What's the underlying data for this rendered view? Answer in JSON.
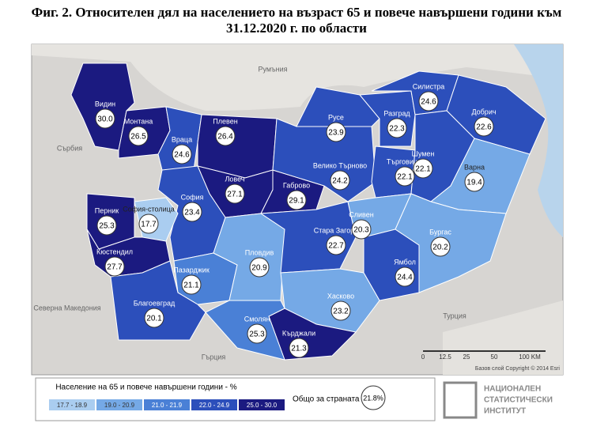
{
  "title": "Фиг. 2. Относителен дял на населението на възраст 65 и повече навършени години към 31.12.2020 г. по области",
  "regions": [
    {
      "name": "Видин",
      "value": "30.0",
      "color": "#1b1a80"
    },
    {
      "name": "Монтана",
      "value": "26.5",
      "color": "#1b1a80"
    },
    {
      "name": "Враца",
      "value": "24.6",
      "color": "#2c4fbb"
    },
    {
      "name": "Плевен",
      "value": "26.4",
      "color": "#1b1a80"
    },
    {
      "name": "Ловеч",
      "value": "27.1",
      "color": "#1b1a80"
    },
    {
      "name": "Габрово",
      "value": "29.1",
      "color": "#1b1a80"
    },
    {
      "name": "Велико Търново",
      "value": "24.2",
      "color": "#2c4fbb"
    },
    {
      "name": "Русе",
      "value": "23.9",
      "color": "#2c4fbb"
    },
    {
      "name": "Разград",
      "value": "22.3",
      "color": "#2c4fbb"
    },
    {
      "name": "Силистра",
      "value": "24.6",
      "color": "#2c4fbb"
    },
    {
      "name": "Добрич",
      "value": "22.6",
      "color": "#2c4fbb"
    },
    {
      "name": "Търговище",
      "value": "22.1",
      "color": "#2c4fbb"
    },
    {
      "name": "Шумен",
      "value": "22.1",
      "color": "#2c4fbb"
    },
    {
      "name": "Варна",
      "value": "19.4",
      "color": "#75a9e6"
    },
    {
      "name": "София",
      "value": "23.4",
      "color": "#2c4fbb"
    },
    {
      "name": "София-столица",
      "value": "17.7",
      "color": "#aacdf0"
    },
    {
      "name": "Перник",
      "value": "25.3",
      "color": "#1b1a80"
    },
    {
      "name": "Кюстендил",
      "value": "27.7",
      "color": "#1b1a80"
    },
    {
      "name": "Пазарджик",
      "value": "21.1",
      "color": "#4a80d6"
    },
    {
      "name": "Пловдив",
      "value": "20.9",
      "color": "#75a9e6"
    },
    {
      "name": "Стара Загора",
      "value": "22.7",
      "color": "#2c4fbb"
    },
    {
      "name": "Сливен",
      "value": "20.3",
      "color": "#75a9e6"
    },
    {
      "name": "Ямбол",
      "value": "24.4",
      "color": "#2c4fbb"
    },
    {
      "name": "Бургас",
      "value": "20.2",
      "color": "#75a9e6"
    },
    {
      "name": "Благоевград",
      "value": "20.1",
      "color": "#75a9e6"
    },
    {
      "name": "Смолян",
      "value": "25.3",
      "color": "#1b1a80"
    },
    {
      "name": "Кърджали",
      "value": "21.3",
      "color": "#4a80d6"
    },
    {
      "name": "Хасково",
      "value": "23.2",
      "color": "#2c4fbb"
    }
  ],
  "countries": [
    "Румъния",
    "Сърбия",
    "Северна Македония",
    "Гърция",
    "Турция"
  ],
  "scale": [
    "0",
    "12.5",
    "25",
    "50",
    "100 KM"
  ],
  "attribution": "Базов слой Copyright © 2014 Esri",
  "legend": {
    "title": "Население на 65 и повече навършени години - %",
    "classes": [
      {
        "label": "17.7 - 18.9",
        "color": "#aacdf0"
      },
      {
        "label": "19.0 - 20.9",
        "color": "#75a9e6"
      },
      {
        "label": "21.0 - 21.9",
        "color": "#4a80d6"
      },
      {
        "label": "22.0 - 24.9",
        "color": "#2c4fbb"
      },
      {
        "label": "25.0 - 30.0",
        "color": "#1b1a80"
      }
    ],
    "national_label": "Общо за страната",
    "national_value": "21.8%"
  },
  "logo": [
    "НАЦИОНАЛЕН",
    "СТАТИСТИЧЕСКИ",
    "ИНСТИТУТ"
  ]
}
